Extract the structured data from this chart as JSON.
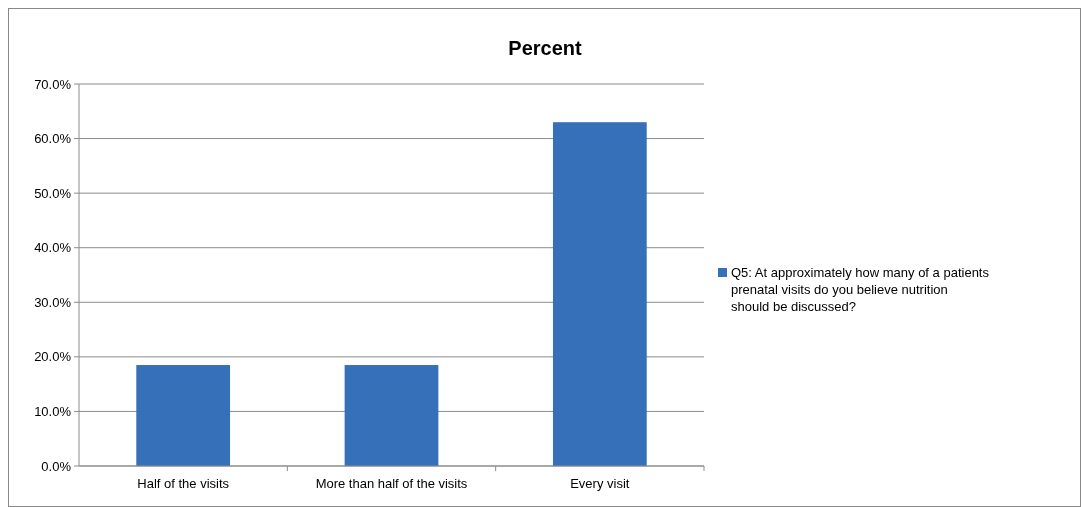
{
  "chart_data": {
    "type": "bar",
    "title": "Percent",
    "categories": [
      "Half of the visits",
      "More than half of the visits",
      "Every visit"
    ],
    "series": [
      {
        "name": "Q5: At approximately how many of a patients prenatal visits do you believe nutrition should be discussed?",
        "color": "#3670b9",
        "values": [
          18.5,
          18.5,
          63.0
        ]
      }
    ],
    "ylim": [
      0,
      70
    ],
    "yticks": [
      {
        "value": 0,
        "label": "0.0%"
      },
      {
        "value": 10,
        "label": "10.0%"
      },
      {
        "value": 20,
        "label": "20.0%"
      },
      {
        "value": 30,
        "label": "30.0%"
      },
      {
        "value": 40,
        "label": "40.0%"
      },
      {
        "value": 50,
        "label": "50.0%"
      },
      {
        "value": 60,
        "label": "60.0%"
      },
      {
        "value": 70,
        "label": "70.0%"
      }
    ],
    "grid": "y",
    "legend": "right"
  }
}
